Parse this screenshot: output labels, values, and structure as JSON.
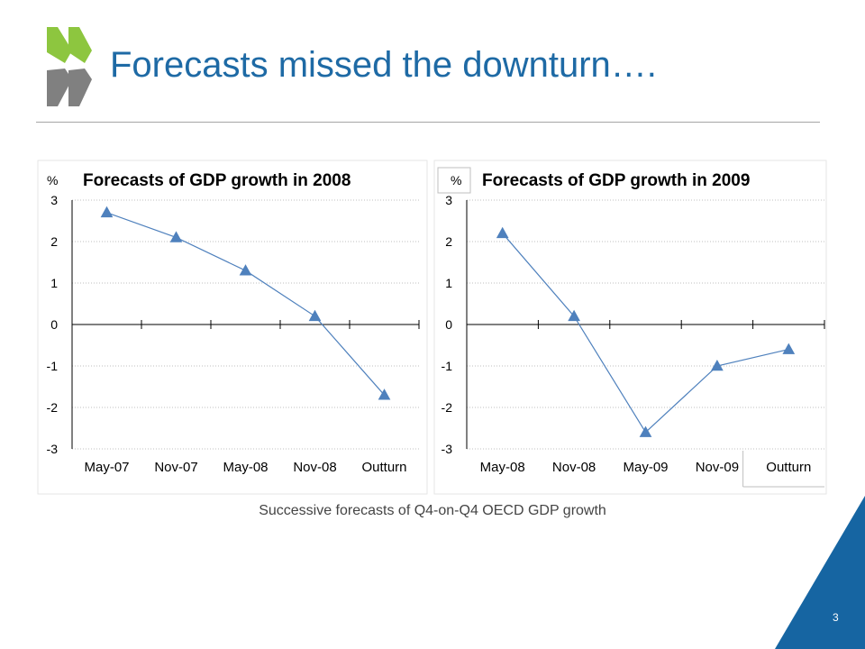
{
  "slide": {
    "title": "Forecasts missed the downturn….",
    "caption": "Successive forecasts of Q4-on-Q4 OECD GDP growth",
    "page_number": "3"
  },
  "colors": {
    "title": "#1e6aa5",
    "series": "#4f81bd",
    "logo_green": "#8dc63f",
    "logo_grey": "#808080",
    "corner": "#1665a2"
  },
  "chart_data": [
    {
      "type": "line",
      "title": "Forecasts of GDP growth in 2008",
      "ylabel": "%",
      "categories": [
        "May-07",
        "Nov-07",
        "May-08",
        "Nov-08",
        "Outturn"
      ],
      "series": [
        {
          "values": [
            2.7,
            2.1,
            1.3,
            0.2,
            -1.7
          ]
        }
      ],
      "ylim": [
        -3,
        3
      ],
      "yticks": [
        3,
        2,
        1,
        0,
        -1,
        -2,
        -3
      ],
      "grid": true,
      "marker": "triangle"
    },
    {
      "type": "line",
      "title": "Forecasts of GDP growth in 2009",
      "ylabel": "%",
      "categories": [
        "May-08",
        "Nov-08",
        "May-09",
        "Nov-09",
        "Outturn"
      ],
      "series": [
        {
          "values": [
            2.2,
            0.2,
            -2.6,
            -1.0,
            -0.6
          ]
        }
      ],
      "ylim": [
        -3,
        3
      ],
      "yticks": [
        3,
        2,
        1,
        0,
        -1,
        -2,
        -3
      ],
      "grid": true,
      "marker": "triangle"
    }
  ]
}
